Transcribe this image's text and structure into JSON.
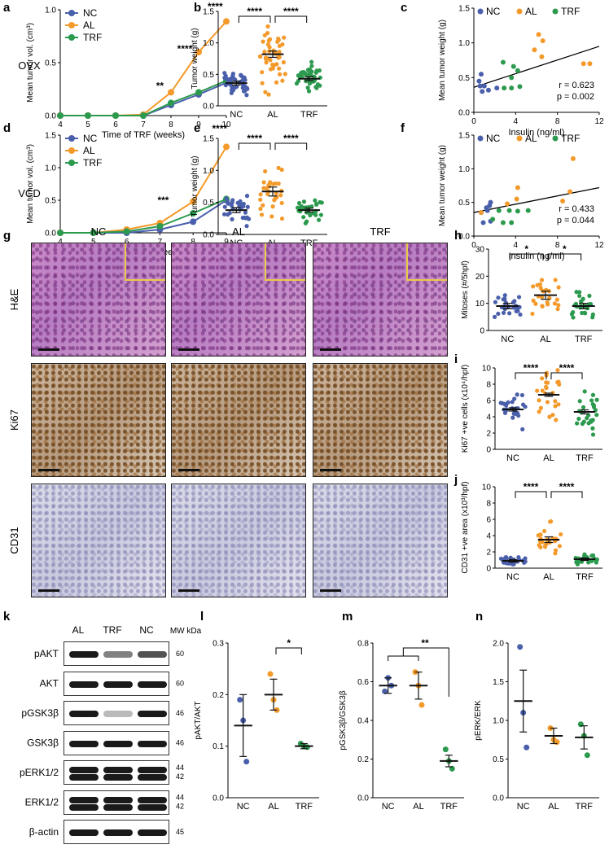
{
  "colors": {
    "NC": "#4a5fab",
    "AL": "#f39a2b",
    "TRF": "#2c9a4e"
  },
  "panel_letters": {
    "a": "a",
    "b": "b",
    "c": "c",
    "d": "d",
    "e": "e",
    "f": "f",
    "g": "g",
    "h": "h",
    "i": "i",
    "j": "j",
    "k": "k",
    "l": "l",
    "m": "m",
    "n": "n"
  },
  "row_labels": {
    "ovx": "OVX",
    "vcd": "VCD"
  },
  "histology": {
    "columns": [
      "NC",
      "AL",
      "TRF"
    ],
    "rows": [
      "H&E",
      "Ki67",
      "CD31"
    ]
  },
  "western": {
    "headers": [
      "AL",
      "TRF",
      "NC"
    ],
    "mw_label": "MW kDa",
    "proteins": [
      {
        "name": "pAKT",
        "mw": [
          "60"
        ],
        "bands": [
          1.0,
          0.55,
          0.75
        ]
      },
      {
        "name": "AKT",
        "mw": [
          "60"
        ],
        "bands": [
          1.0,
          1.0,
          1.0
        ]
      },
      {
        "name": "pGSK3β",
        "mw": [
          "46"
        ],
        "bands": [
          1.0,
          0.3,
          1.0
        ]
      },
      {
        "name": "GSK3β",
        "mw": [
          "46"
        ],
        "bands": [
          1.0,
          1.0,
          1.0
        ]
      },
      {
        "name": "pERK1/2",
        "mw": [
          "44",
          "42"
        ],
        "bands": [
          1.0,
          1.0,
          1.0
        ]
      },
      {
        "name": "ERK1/2",
        "mw": [
          "44",
          "42"
        ],
        "bands": [
          1.0,
          1.0,
          1.0
        ]
      },
      {
        "name": "β-actin",
        "mw": [
          "45"
        ],
        "bands": [
          1.0,
          1.0,
          1.0
        ]
      }
    ]
  },
  "chart_data": [
    {
      "id": "a",
      "type": "line",
      "ylabel": "Mean tumor vol. (cm³)",
      "xlabel": "Time of TRF (weeks)",
      "x": [
        4,
        5,
        6,
        7,
        8,
        9,
        10
      ],
      "xlim": [
        4,
        10
      ],
      "ylim": [
        0,
        1.0
      ],
      "yticks": [
        "0.0",
        "0.5",
        "1.0"
      ],
      "xticks": [
        "4",
        "5",
        "6",
        "7",
        "8",
        "9",
        "10"
      ],
      "series": [
        {
          "name": "NC",
          "values": [
            0,
            0,
            0,
            0,
            0.1,
            0.2,
            0.31
          ]
        },
        {
          "name": "AL",
          "values": [
            0,
            0,
            0,
            0.01,
            0.22,
            0.6,
            0.89
          ]
        },
        {
          "name": "TRF",
          "values": [
            0,
            0,
            0,
            0,
            0.12,
            0.22,
            0.33
          ]
        }
      ],
      "annotations": [
        {
          "x": 7.6,
          "y": 0.25,
          "text": "**"
        },
        {
          "x": 8.5,
          "y": 0.6,
          "text": "****"
        },
        {
          "x": 9.6,
          "y": 1.0,
          "text": "****"
        }
      ]
    },
    {
      "id": "b",
      "type": "scatter",
      "ylabel": "Tumor weight (g)",
      "categories": [
        "NC",
        "AL",
        "TRF"
      ],
      "ylim": [
        0,
        1.5
      ],
      "yticks": [
        "0.0",
        "0.5",
        "1.0",
        "1.5"
      ],
      "means": [
        0.36,
        0.82,
        0.43
      ],
      "sem": [
        0.03,
        0.05,
        0.03
      ],
      "n": [
        40,
        45,
        40
      ],
      "brackets": [
        {
          "from": 0,
          "to": 1,
          "text": "****"
        },
        {
          "from": 1,
          "to": 2,
          "text": "****"
        }
      ]
    },
    {
      "id": "c",
      "type": "scatter",
      "ylabel": "Mean tumor weight (g)",
      "xlabel": "Insulin (ng/ml)",
      "xlim": [
        0,
        12
      ],
      "ylim": [
        0,
        1.5
      ],
      "xticks": [
        "0",
        "4",
        "8",
        "12"
      ],
      "yticks": [
        "0.0",
        "0.5",
        "1.0",
        "1.5"
      ],
      "series": [
        {
          "name": "NC",
          "points": [
            [
              0.5,
              0.45
            ],
            [
              0.7,
              0.55
            ],
            [
              1.0,
              0.38
            ],
            [
              0.8,
              0.3
            ],
            [
              1.4,
              0.32
            ],
            [
              2.2,
              0.35
            ],
            [
              0.6,
              0.38
            ]
          ]
        },
        {
          "name": "AL",
          "points": [
            [
              6.2,
              1.12
            ],
            [
              6.6,
              1.03
            ],
            [
              5.8,
              0.9
            ],
            [
              6.5,
              0.8
            ],
            [
              10.5,
              0.7
            ],
            [
              11.1,
              0.7
            ]
          ]
        },
        {
          "name": "TRF",
          "points": [
            [
              2.8,
              0.72
            ],
            [
              3.8,
              0.66
            ],
            [
              4.2,
              0.6
            ],
            [
              3.6,
              0.5
            ],
            [
              2.9,
              0.35
            ],
            [
              3.6,
              0.35
            ],
            [
              4.4,
              0.37
            ]
          ]
        }
      ],
      "fit": [
        [
          0,
          0.36
        ],
        [
          12,
          0.95
        ]
      ],
      "stats": [
        "r = 0.623",
        "p = 0.002"
      ]
    },
    {
      "id": "d",
      "type": "line",
      "ylabel": "Mean tumor vol. (cm³)",
      "xlabel": "Time of TRF (weeks)",
      "x": [
        4,
        5,
        6,
        7,
        8,
        9
      ],
      "xlim": [
        4,
        9
      ],
      "ylim": [
        0,
        1.5
      ],
      "yticks": [
        "0.0",
        "0.5",
        "1.0",
        "1.5"
      ],
      "xticks": [
        "4",
        "5",
        "6",
        "7",
        "8",
        "9"
      ],
      "series": [
        {
          "name": "NC",
          "values": [
            0,
            0,
            0,
            0.05,
            0.17,
            0.5
          ]
        },
        {
          "name": "AL",
          "values": [
            0,
            0,
            0.05,
            0.15,
            0.48,
            1.32
          ]
        },
        {
          "name": "TRF",
          "values": [
            0,
            0,
            0.02,
            0.1,
            0.3,
            0.52
          ]
        }
      ],
      "annotations": [
        {
          "x": 7.1,
          "y": 0.45,
          "text": "***"
        },
        {
          "x": 8.8,
          "y": 1.55,
          "text": "****"
        }
      ]
    },
    {
      "id": "e",
      "type": "scatter",
      "ylabel": "Tumor weight (g)",
      "categories": [
        "NC",
        "AL",
        "TRF"
      ],
      "ylim": [
        0,
        1.5
      ],
      "yticks": [
        "0.0",
        "0.5",
        "1.0",
        "1.5"
      ],
      "means": [
        0.38,
        0.67,
        0.38
      ],
      "sem": [
        0.04,
        0.07,
        0.03
      ],
      "n": [
        30,
        30,
        32
      ],
      "brackets": [
        {
          "from": 0,
          "to": 1,
          "text": "****"
        },
        {
          "from": 1,
          "to": 2,
          "text": "****"
        }
      ]
    },
    {
      "id": "f",
      "type": "scatter",
      "ylabel": "Mean tumor weight (g)",
      "xlabel": "Insulin (ng/ml)",
      "xlim": [
        0,
        12
      ],
      "ylim": [
        0,
        1.5
      ],
      "xticks": [
        "0",
        "4",
        "8",
        "12"
      ],
      "yticks": [
        "0.0",
        "0.5",
        "1.0",
        "1.5"
      ],
      "series": [
        {
          "name": "NC",
          "points": [
            [
              0.7,
              0.35
            ],
            [
              1.2,
              0.42
            ],
            [
              1.3,
              0.38
            ],
            [
              1.5,
              0.45
            ],
            [
              1.6,
              0.5
            ],
            [
              0.9,
              0.2
            ],
            [
              1.6,
              0.22
            ]
          ]
        },
        {
          "name": "AL",
          "points": [
            [
              9.5,
              1.15
            ],
            [
              4.2,
              0.72
            ],
            [
              9.2,
              0.66
            ],
            [
              4.1,
              0.55
            ],
            [
              3.2,
              0.48
            ],
            [
              8.5,
              0.52
            ],
            [
              0.7,
              0.35
            ]
          ]
        },
        {
          "name": "TRF",
          "points": [
            [
              2.4,
              0.38
            ],
            [
              3.4,
              0.38
            ],
            [
              4.2,
              0.37
            ],
            [
              5.2,
              0.38
            ],
            [
              1.8,
              0.25
            ],
            [
              2.8,
              0.2
            ],
            [
              3.6,
              0.2
            ]
          ]
        }
      ],
      "fit": [
        [
          0,
          0.35
        ],
        [
          12,
          0.72
        ]
      ],
      "stats": [
        "r = 0.433",
        "p = 0.044"
      ]
    },
    {
      "id": "h",
      "type": "scatter",
      "ylabel": "Mitoses (#/5hpf)",
      "categories": [
        "NC",
        "AL",
        "TRF"
      ],
      "ylim": [
        0,
        30
      ],
      "yticks": [
        "0",
        "10",
        "20",
        "30"
      ],
      "means": [
        9,
        13,
        9
      ],
      "sem": [
        1,
        1.5,
        1
      ],
      "n": [
        25,
        25,
        25
      ],
      "brackets": [
        {
          "from": 0,
          "to": 1,
          "text": "*"
        },
        {
          "from": 1,
          "to": 2,
          "text": "*"
        }
      ]
    },
    {
      "id": "i",
      "type": "scatter",
      "ylabel": "Ki67 +ve cells (x10⁴/hpf)",
      "categories": [
        "NC",
        "AL",
        "TRF"
      ],
      "ylim": [
        0,
        10
      ],
      "yticks": [
        "0",
        "2",
        "4",
        "6",
        "8",
        "10"
      ],
      "means": [
        4.9,
        6.7,
        4.6
      ],
      "sem": [
        0.2,
        0.2,
        0.25
      ],
      "n": [
        25,
        25,
        25
      ],
      "brackets": [
        {
          "from": 0,
          "to": 1,
          "text": "****"
        },
        {
          "from": 1,
          "to": 2,
          "text": "****"
        }
      ]
    },
    {
      "id": "j",
      "type": "scatter",
      "ylabel": "CD31 +ve area (x10³/hpf)",
      "categories": [
        "NC",
        "AL",
        "TRF"
      ],
      "ylim": [
        0,
        10
      ],
      "yticks": [
        "0",
        "2",
        "4",
        "6",
        "8",
        "10"
      ],
      "means": [
        0.9,
        3.5,
        1.1
      ],
      "sem": [
        0.15,
        0.35,
        0.15
      ],
      "n": [
        25,
        25,
        25
      ],
      "brackets": [
        {
          "from": 0,
          "to": 1,
          "text": "****"
        },
        {
          "from": 1,
          "to": 2,
          "text": "****"
        }
      ]
    },
    {
      "id": "l",
      "type": "scatter",
      "ylabel": "pAKT/AKT",
      "categories": [
        "NC",
        "AL",
        "TRF"
      ],
      "ylim": [
        0,
        0.3
      ],
      "yticks": [
        "0.0",
        "0.1",
        "0.2",
        "0.3"
      ],
      "means": [
        0.14,
        0.2,
        0.1
      ],
      "sem": [
        0.06,
        0.03,
        0.005
      ],
      "points": [
        [
          0.19,
          0.15,
          0.07
        ],
        [
          0.24,
          0.19,
          0.17
        ],
        [
          0.105,
          0.1,
          0.098
        ]
      ],
      "brackets": [
        {
          "from": 1,
          "to": 2,
          "text": "*"
        }
      ]
    },
    {
      "id": "m",
      "type": "scatter",
      "ylabel": "pGSK3β/GSK3β",
      "categories": [
        "NC",
        "AL",
        "TRF"
      ],
      "ylim": [
        0,
        0.8
      ],
      "yticks": [
        "0.0",
        "0.2",
        "0.4",
        "0.6",
        "0.8"
      ],
      "means": [
        0.58,
        0.58,
        0.19
      ],
      "sem": [
        0.04,
        0.07,
        0.03
      ],
      "points": [
        [
          0.55,
          0.62,
          0.58
        ],
        [
          0.65,
          0.58,
          0.48
        ],
        [
          0.25,
          0.19,
          0.15
        ]
      ],
      "brackets": [
        {
          "from": 0,
          "to": 2,
          "text": "**",
          "group": [
            0,
            1
          ]
        }
      ]
    },
    {
      "id": "n",
      "type": "scatter",
      "ylabel": "pERK/ERK",
      "categories": [
        "NC",
        "AL",
        "TRF"
      ],
      "ylim": [
        0,
        2.0
      ],
      "yticks": [
        "0.0",
        "0.5",
        "1.0",
        "1.5",
        "2.0"
      ],
      "means": [
        1.25,
        0.8,
        0.78
      ],
      "sem": [
        0.4,
        0.1,
        0.15
      ],
      "points": [
        [
          1.95,
          1.1,
          0.65
        ],
        [
          0.9,
          0.75,
          0.72
        ],
        [
          0.95,
          0.8,
          0.55
        ]
      ],
      "brackets": []
    }
  ]
}
